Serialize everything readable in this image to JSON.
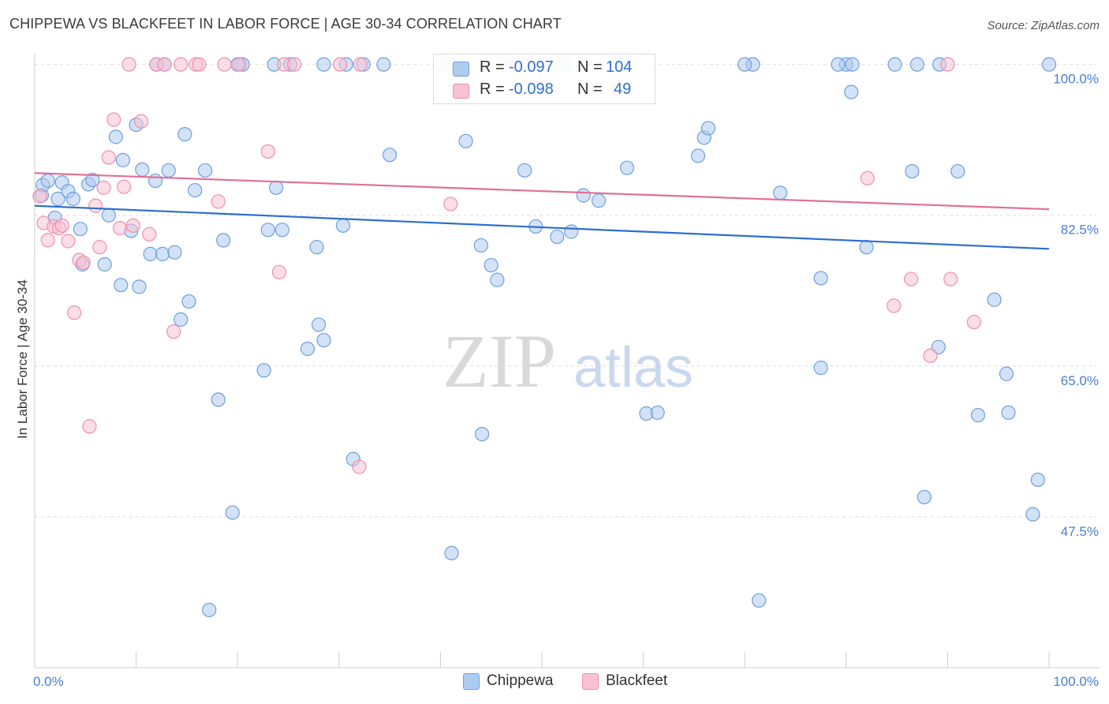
{
  "header": {
    "title": "CHIPPEWA VS BLACKFEET IN LABOR FORCE | AGE 30-34 CORRELATION CHART",
    "source": "Source: ZipAtlas.com"
  },
  "colors": {
    "chippewa_fill": "#aecbf0",
    "chippewa_stroke": "#6f9fdc",
    "chippewa_line": "#2d6fce",
    "blackfeet_fill": "#f8c2d3",
    "blackfeet_stroke": "#ee8fae",
    "blackfeet_line": "#e0709a",
    "tick_color": "#4a7fd4",
    "grid": "#dedede"
  },
  "legend": {
    "rows": [
      {
        "r_label": "R =",
        "r_value": "-0.097",
        "n_label": "N =",
        "n_value": "104"
      },
      {
        "r_label": "R =",
        "r_value": "-0.098",
        "n_label": "N =",
        "n_value": "49"
      }
    ]
  },
  "bottom_legend": {
    "items": [
      {
        "label": "Chippewa"
      },
      {
        "label": "Blackfeet"
      }
    ]
  },
  "watermark": {
    "zip": "ZIP",
    "atlas": "atlas"
  },
  "chart_data": {
    "type": "scatter",
    "title": "CHIPPEWA VS BLACKFEET IN LABOR FORCE | AGE 30-34 CORRELATION CHART",
    "xlabel": "",
    "ylabel": "In Labor Force | Age 30-34",
    "xlim": [
      0,
      100
    ],
    "ylim": [
      30,
      101.8
    ],
    "x_tick_labels": [
      "0.0%",
      "100.0%"
    ],
    "y_ticks": [
      47.5,
      65.0,
      82.5,
      100.0
    ],
    "y_tick_labels": [
      "47.5%",
      "65.0%",
      "82.5%",
      "100.0%"
    ],
    "grid": true,
    "legend_position": "top-center",
    "series": [
      {
        "name": "Chippewa",
        "r": -0.097,
        "n": 104,
        "trend": {
          "x0": 0,
          "y0": 83.6,
          "x1": 100,
          "y1": 78.6
        },
        "points": [
          [
            0.7,
            84.8
          ],
          [
            0.8,
            86.0
          ],
          [
            1.3,
            86.5
          ],
          [
            2.0,
            82.2
          ],
          [
            2.3,
            84.4
          ],
          [
            2.7,
            86.3
          ],
          [
            3.3,
            85.3
          ],
          [
            3.8,
            84.4
          ],
          [
            4.5,
            80.9
          ],
          [
            4.7,
            76.8
          ],
          [
            5.3,
            86.1
          ],
          [
            5.7,
            86.6
          ],
          [
            6.9,
            76.8
          ],
          [
            7.3,
            82.5
          ],
          [
            8.0,
            91.6
          ],
          [
            8.5,
            74.4
          ],
          [
            8.7,
            88.9
          ],
          [
            9.5,
            80.7
          ],
          [
            10.0,
            93.0
          ],
          [
            10.3,
            74.2
          ],
          [
            10.6,
            87.8
          ],
          [
            11.4,
            78.0
          ],
          [
            11.9,
            86.5
          ],
          [
            12.6,
            78.0
          ],
          [
            13.2,
            87.7
          ],
          [
            13.8,
            78.2
          ],
          [
            14.4,
            70.4
          ],
          [
            14.8,
            91.9
          ],
          [
            15.2,
            72.5
          ],
          [
            15.8,
            85.4
          ],
          [
            16.8,
            87.7
          ],
          [
            17.2,
            36.7
          ],
          [
            18.1,
            61.1
          ],
          [
            18.6,
            79.6
          ],
          [
            19.5,
            48.0
          ],
          [
            22.6,
            64.5
          ],
          [
            23.0,
            80.8
          ],
          [
            23.8,
            85.7
          ],
          [
            24.4,
            80.8
          ],
          [
            26.9,
            67.0
          ],
          [
            27.8,
            78.8
          ],
          [
            28.0,
            69.8
          ],
          [
            28.5,
            68.0
          ],
          [
            30.4,
            81.3
          ],
          [
            31.4,
            54.2
          ],
          [
            35.0,
            89.5
          ],
          [
            41.1,
            43.3
          ],
          [
            42.5,
            91.1
          ],
          [
            44.0,
            79.0
          ],
          [
            44.1,
            57.1
          ],
          [
            45.0,
            76.7
          ],
          [
            45.6,
            75.0
          ],
          [
            48.3,
            87.7
          ],
          [
            49.4,
            81.2
          ],
          [
            51.5,
            80.0
          ],
          [
            52.9,
            80.6
          ],
          [
            54.1,
            84.8
          ],
          [
            55.6,
            84.2
          ],
          [
            58.4,
            88.0
          ],
          [
            60.3,
            59.5
          ],
          [
            61.4,
            59.6
          ],
          [
            65.4,
            89.4
          ],
          [
            66.0,
            91.5
          ],
          [
            66.4,
            92.6
          ],
          [
            71.4,
            37.8
          ],
          [
            73.5,
            85.1
          ],
          [
            77.5,
            75.2
          ],
          [
            77.5,
            64.8
          ],
          [
            80.5,
            96.8
          ],
          [
            82.0,
            78.8
          ],
          [
            86.5,
            87.6
          ],
          [
            87.7,
            49.8
          ],
          [
            89.1,
            67.2
          ],
          [
            91.0,
            87.6
          ],
          [
            93.0,
            59.3
          ],
          [
            94.6,
            72.7
          ],
          [
            95.8,
            64.1
          ],
          [
            96.0,
            59.6
          ],
          [
            98.4,
            47.8
          ],
          [
            98.9,
            51.8
          ],
          [
            12.8,
            100.0
          ],
          [
            20.5,
            100.0
          ],
          [
            23.6,
            100.0
          ],
          [
            28.5,
            100.0
          ],
          [
            32.4,
            100.0
          ],
          [
            41.0,
            100.0
          ],
          [
            52.2,
            100.0
          ],
          [
            58.1,
            100.0
          ],
          [
            70.8,
            100.0
          ],
          [
            80.0,
            100.0
          ],
          [
            80.6,
            100.0
          ],
          [
            87.0,
            100.0
          ],
          [
            89.2,
            100.0
          ],
          [
            100.0,
            100.0
          ],
          [
            12.0,
            100.0
          ],
          [
            20.0,
            100.0
          ],
          [
            25.2,
            100.0
          ],
          [
            30.7,
            100.0
          ],
          [
            34.4,
            100.0
          ],
          [
            46.2,
            100.0
          ],
          [
            54.0,
            100.0
          ],
          [
            70.0,
            100.0
          ],
          [
            79.2,
            100.0
          ],
          [
            84.8,
            100.0
          ]
        ]
      },
      {
        "name": "Blackfeet",
        "r": -0.098,
        "n": 49,
        "trend": {
          "x0": 0,
          "y0": 87.4,
          "x1": 100,
          "y1": 83.2
        },
        "points": [
          [
            0.5,
            84.7
          ],
          [
            0.9,
            81.6
          ],
          [
            1.3,
            79.6
          ],
          [
            1.9,
            81.2
          ],
          [
            2.4,
            81.0
          ],
          [
            2.7,
            81.3
          ],
          [
            3.3,
            79.5
          ],
          [
            3.9,
            71.2
          ],
          [
            4.4,
            77.3
          ],
          [
            4.8,
            77.0
          ],
          [
            5.4,
            58.0
          ],
          [
            6.0,
            83.6
          ],
          [
            6.4,
            78.8
          ],
          [
            6.8,
            85.7
          ],
          [
            7.3,
            89.2
          ],
          [
            7.8,
            93.6
          ],
          [
            8.4,
            81.0
          ],
          [
            8.8,
            85.8
          ],
          [
            9.7,
            81.3
          ],
          [
            10.5,
            93.4
          ],
          [
            11.3,
            80.3
          ],
          [
            13.7,
            69.0
          ],
          [
            18.1,
            84.1
          ],
          [
            23.0,
            89.9
          ],
          [
            24.1,
            75.9
          ],
          [
            32.0,
            53.3
          ],
          [
            41.0,
            83.8
          ],
          [
            82.1,
            86.8
          ],
          [
            84.7,
            72.0
          ],
          [
            86.4,
            75.1
          ],
          [
            88.3,
            66.2
          ],
          [
            90.3,
            75.1
          ],
          [
            92.6,
            70.1
          ],
          [
            9.3,
            100.0
          ],
          [
            12.0,
            100.0
          ],
          [
            12.8,
            100.0
          ],
          [
            14.4,
            100.0
          ],
          [
            15.9,
            100.0
          ],
          [
            16.2,
            100.0
          ],
          [
            18.7,
            100.0
          ],
          [
            20.2,
            100.0
          ],
          [
            24.6,
            100.0
          ],
          [
            25.6,
            100.0
          ],
          [
            30.1,
            100.0
          ],
          [
            32.1,
            100.0
          ],
          [
            40.7,
            100.0
          ],
          [
            47.5,
            100.0
          ],
          [
            49.0,
            100.0
          ],
          [
            90.0,
            100.0
          ]
        ]
      }
    ]
  }
}
